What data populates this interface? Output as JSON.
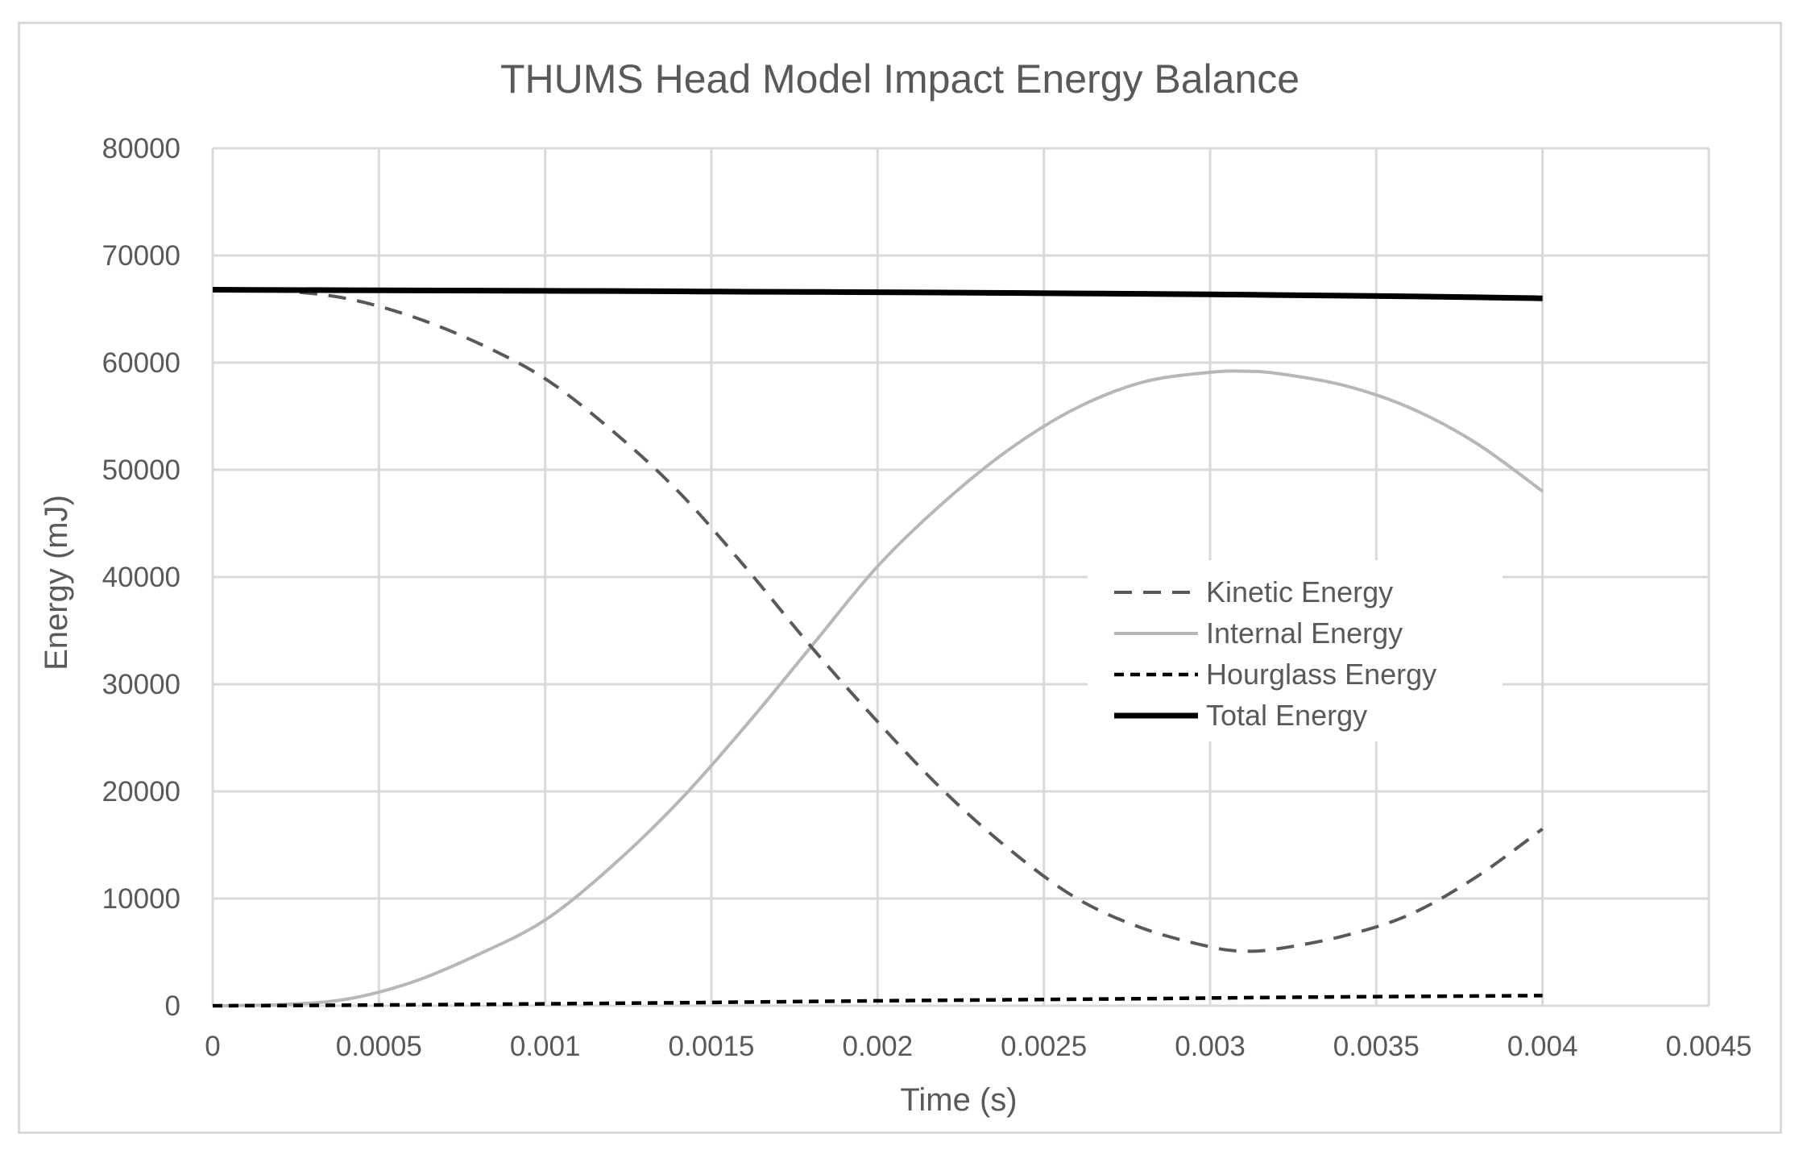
{
  "chart_data": {
    "type": "line",
    "title": "THUMS Head Model Impact Energy Balance",
    "xlabel": "Time (s)",
    "ylabel": "Energy (mJ)",
    "xlim": [
      0,
      0.0045
    ],
    "ylim": [
      0,
      80000
    ],
    "x_ticks": [
      "0",
      "0.0005",
      "0.001",
      "0.0015",
      "0.002",
      "0.0025",
      "0.003",
      "0.0035",
      "0.004",
      "0.0045"
    ],
    "y_ticks": [
      "0",
      "10000",
      "20000",
      "30000",
      "40000",
      "50000",
      "60000",
      "70000",
      "80000"
    ],
    "grid": true,
    "legend_position": "center-right",
    "x": [
      0,
      0.0002,
      0.0004,
      0.0006,
      0.0008,
      0.001,
      0.0012,
      0.0014,
      0.0016,
      0.0018,
      0.002,
      0.0022,
      0.0024,
      0.0026,
      0.0028,
      0.003,
      0.0031,
      0.0032,
      0.0034,
      0.0036,
      0.0038,
      0.004
    ],
    "series": [
      {
        "name": "Kinetic Energy",
        "color": "#595959",
        "dash": "dashed",
        "values": [
          66800,
          66700,
          66000,
          64300,
          61800,
          58500,
          53700,
          48000,
          41000,
          33500,
          26500,
          20000,
          14500,
          10000,
          7200,
          5500,
          5100,
          5300,
          6500,
          8500,
          12000,
          16500
        ]
      },
      {
        "name": "Internal Energy",
        "color": "#b7b7b7",
        "dash": "solid",
        "values": [
          0,
          100,
          600,
          2200,
          4800,
          8000,
          13000,
          19000,
          26000,
          33500,
          41000,
          47000,
          52000,
          55800,
          58200,
          59100,
          59200,
          59000,
          57900,
          55800,
          52500,
          48000
        ]
      },
      {
        "name": "Hourglass Energy",
        "color": "#000000",
        "dash": "dotted",
        "values": [
          0,
          20,
          50,
          90,
          130,
          180,
          230,
          280,
          340,
          400,
          460,
          510,
          560,
          610,
          660,
          720,
          750,
          780,
          830,
          870,
          910,
          950
        ]
      },
      {
        "name": "Total Energy",
        "color": "#000000",
        "dash": "solid",
        "values": [
          66800,
          66780,
          66760,
          66740,
          66720,
          66700,
          66680,
          66650,
          66620,
          66600,
          66570,
          66540,
          66500,
          66460,
          66420,
          66370,
          66340,
          66310,
          66250,
          66180,
          66100,
          66000
        ]
      }
    ]
  }
}
